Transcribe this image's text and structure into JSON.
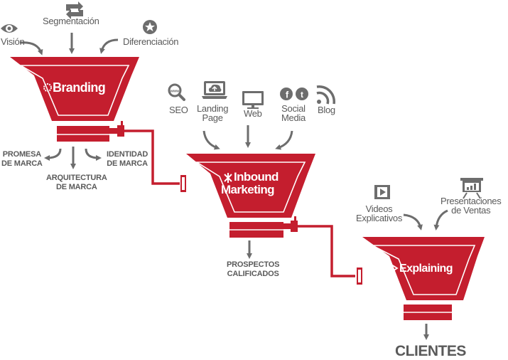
{
  "stage1": {
    "title": "Branding",
    "inputs": [
      "Visión",
      "Segmentación",
      "Diferenciación"
    ],
    "outputs": {
      "left": "PROMESA\nDE MARCA",
      "middle": "ARQUITECTURA\nDE MARCA",
      "right": "IDENTIDAD\nDE MARCA"
    }
  },
  "stage2": {
    "title_line1": "Inbound",
    "title_line2": "Marketing",
    "inputs": [
      "SEO",
      "Landing\nPage",
      "Web",
      "Social\nMedia",
      "Blog"
    ],
    "output": "PROSPECTOS\nCALIFICADOS"
  },
  "stage3": {
    "title": "Explaining",
    "inputs": [
      "Videos\nExplicativos",
      "Presentaciones\nde Ventas"
    ]
  },
  "final_output": "CLIENTES",
  "colors": {
    "hopper_red": "#c41e2e",
    "text_gray": "#5a5a5a",
    "arrow_gray": "#6d6d6d"
  },
  "icons": [
    "eye-icon",
    "refresh-icon",
    "star-badge-icon",
    "magnifier-www-icon",
    "cloud-upload-laptop-icon",
    "monitor-icon",
    "facebook-icon",
    "twitter-icon",
    "rss-icon",
    "video-film-icon",
    "presentation-board-icon"
  ]
}
